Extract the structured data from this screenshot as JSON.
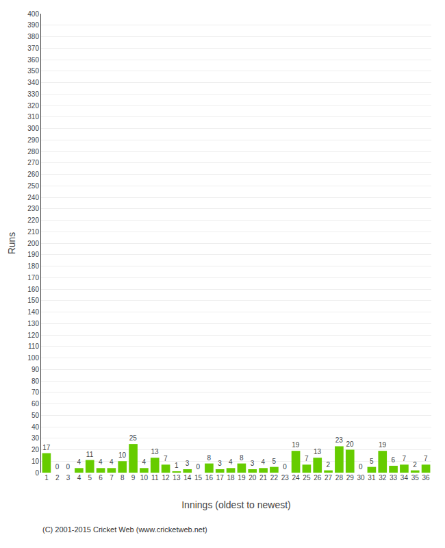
{
  "chart_data": {
    "type": "bar",
    "xlabel": "Innings (oldest to newest)",
    "ylabel": "Runs",
    "categories": [
      "1",
      "2",
      "3",
      "4",
      "5",
      "6",
      "7",
      "8",
      "9",
      "10",
      "11",
      "12",
      "13",
      "14",
      "15",
      "16",
      "17",
      "18",
      "19",
      "20",
      "21",
      "22",
      "23",
      "24",
      "25",
      "26",
      "27",
      "28",
      "29",
      "30",
      "31",
      "32",
      "33",
      "34",
      "35",
      "36"
    ],
    "values": [
      17,
      0,
      0,
      4,
      11,
      4,
      4,
      10,
      25,
      4,
      13,
      7,
      1,
      3,
      0,
      8,
      3,
      4,
      8,
      3,
      4,
      5,
      0,
      19,
      7,
      13,
      2,
      23,
      20,
      0,
      5,
      19,
      6,
      7,
      2,
      7
    ],
    "color": "#66cc00",
    "ylim": [
      0,
      400
    ],
    "yticks": [
      0,
      10,
      20,
      30,
      40,
      50,
      60,
      70,
      80,
      90,
      100,
      110,
      120,
      130,
      140,
      150,
      160,
      170,
      180,
      190,
      200,
      210,
      220,
      230,
      240,
      250,
      260,
      270,
      280,
      290,
      300,
      310,
      320,
      330,
      340,
      350,
      360,
      370,
      380,
      390,
      400
    ],
    "grid": true,
    "data_labels": true,
    "annotations": [
      "(C) 2001-2015 Cricket Web (www.cricketweb.net)"
    ]
  }
}
